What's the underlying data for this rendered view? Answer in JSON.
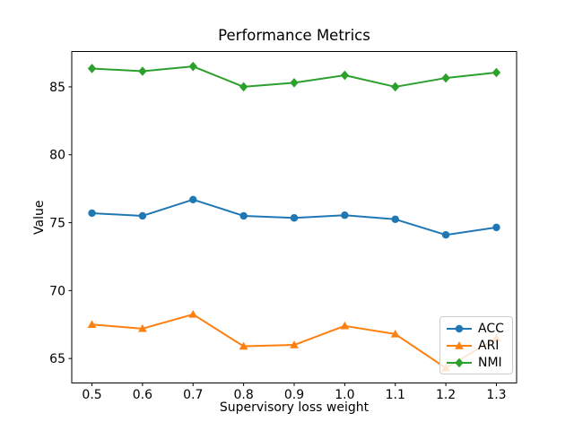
{
  "chart_data": {
    "type": "line",
    "title": "Performance Metrics",
    "xlabel": "Supervisory loss weight",
    "ylabel": "Value",
    "x": [
      0.5,
      0.6,
      0.7,
      0.8,
      0.9,
      1.0,
      1.1,
      1.2,
      1.3
    ],
    "x_tick_labels": [
      "0.5",
      "0.6",
      "0.7",
      "0.8",
      "0.9",
      "1.0",
      "1.1",
      "1.2",
      "1.3"
    ],
    "y_ticks": [
      65,
      70,
      75,
      80,
      85
    ],
    "xlim": [
      0.46,
      1.34
    ],
    "ylim": [
      63.2,
      87.6
    ],
    "grid": false,
    "legend_position": "lower right",
    "series": [
      {
        "name": "ACC",
        "color": "#1f77b4",
        "marker": "circle",
        "values": [
          75.7,
          75.5,
          76.7,
          75.5,
          75.35,
          75.55,
          75.25,
          74.1,
          74.65
        ]
      },
      {
        "name": "ARI",
        "color": "#ff7f0e",
        "marker": "triangle-up",
        "values": [
          67.5,
          67.2,
          68.25,
          65.9,
          66.0,
          67.4,
          66.8,
          64.3,
          66.5
        ]
      },
      {
        "name": "NMI",
        "color": "#2ca02c",
        "marker": "diamond",
        "values": [
          86.35,
          86.15,
          86.5,
          85.0,
          85.3,
          85.85,
          85.0,
          85.65,
          86.05
        ]
      }
    ]
  }
}
